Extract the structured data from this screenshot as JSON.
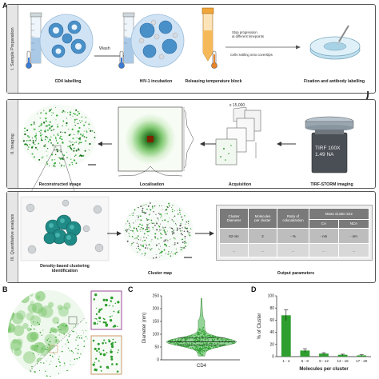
{
  "panels": {
    "a": "A",
    "b": "B",
    "c": "C",
    "d": "D"
  },
  "sections": {
    "s1": "I. Sample Preparation",
    "s2": "II. Imaging",
    "s3": "III. Quantitative analysis"
  },
  "step_labels": {
    "cd4": "CD4 labelling",
    "wash": "Wash",
    "hiv": "HIV-1 incubation",
    "release": "Releasing temperature block",
    "stop": "Stop progression\nat different timepoints",
    "settle": "Cells settling onto coverslips",
    "fix": "Fixation and antibody labelling",
    "reconstructed": "Reconstructed image",
    "localisation": "Localisation",
    "acquisition": "Acquisition",
    "x15000": "x 15,000",
    "tirf_storm": "TIRF-STORM imaging",
    "objective_line1": "TIRF 100X",
    "objective_line2": "1.49 NA",
    "dbscan": "Density-based clustering\nidentification",
    "cluster_map": "Cluster map",
    "output": "Output parameters"
  },
  "output_table": {
    "headers": [
      "Cluster\nDiameter",
      "Molecules\nper cluster",
      "Ratio of\ncolocalization",
      "Mean cluster size"
    ],
    "sub_headers": [
      "CA",
      "NCA"
    ],
    "row1": [
      "62 nm",
      "2",
      "- %",
      "- nm",
      "- nm"
    ],
    "row2": [
      "...",
      "...",
      "...",
      "...",
      "..."
    ]
  },
  "chart_data": [
    {
      "type": "violin",
      "panel": "C",
      "categories": [
        "CD4"
      ],
      "xlabel": "CD4",
      "ylabel": "Diameter (nm)",
      "ylim": [
        0,
        250
      ],
      "yticks": [
        0,
        50,
        100,
        150,
        200,
        250
      ],
      "median": 70,
      "quartiles": [
        58,
        85
      ],
      "color": "#3cb043"
    },
    {
      "type": "bar",
      "panel": "D",
      "categories": [
        "1 - 4",
        "5 - 8",
        "9 - 12",
        "13 - 16",
        "17 - 20"
      ],
      "values": [
        68,
        10,
        5,
        3,
        2
      ],
      "errors": [
        9,
        3,
        1.5,
        1,
        1
      ],
      "xlabel": "Molecules per cluster",
      "ylabel": "% of Cluster",
      "ylim": [
        0,
        100
      ],
      "yticks": [
        0,
        20,
        40,
        60,
        80,
        100
      ],
      "color": "#2e9e2e"
    }
  ],
  "colors": {
    "accent": "#2e9e2e",
    "cell_blue": "#4a90c8",
    "teal": "#1f8a86"
  }
}
